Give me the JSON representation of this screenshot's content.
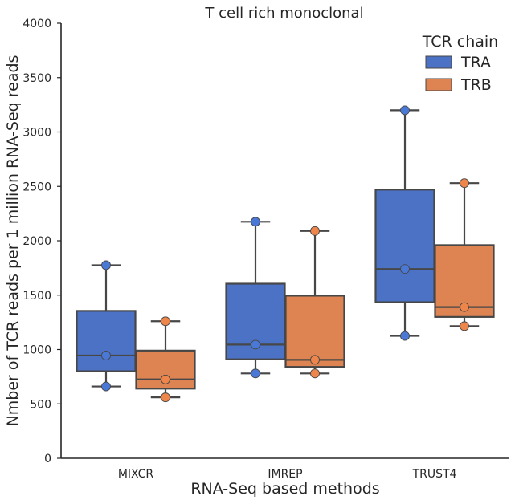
{
  "chart_data": {
    "type": "box",
    "title": "T cell rich monoclonal",
    "xlabel": "RNA-Seq based methods",
    "ylabel": "Nmber of TCR reads per 1 million RNA-Seq reads",
    "categories": [
      "MIXCR",
      "IMREP",
      "TRUST4"
    ],
    "ylim": [
      0,
      4000
    ],
    "yticks": [
      0,
      500,
      1000,
      1500,
      2000,
      2500,
      3000,
      3500,
      4000
    ],
    "legend": {
      "title": "TCR chain",
      "position": "top-right",
      "entries": [
        "TRA",
        "TRB"
      ]
    },
    "grid": false,
    "colors": {
      "TRA": "#4c72c6",
      "TRB": "#dd8452",
      "TRA_point": "#4a78d6",
      "TRB_point": "#ee854a",
      "line": "#474747"
    },
    "series": [
      {
        "name": "TRA",
        "boxes": [
          {
            "category": "MIXCR",
            "whisker_low": 660,
            "q1": 800,
            "median": 945,
            "q3": 1355,
            "whisker_high": 1775
          },
          {
            "category": "IMREP",
            "whisker_low": 780,
            "q1": 910,
            "median": 1045,
            "q3": 1605,
            "whisker_high": 2175
          },
          {
            "category": "TRUST4",
            "whisker_low": 1125,
            "q1": 1435,
            "median": 1740,
            "q3": 2470,
            "whisker_high": 3200
          }
        ],
        "points": [
          {
            "category": "MIXCR",
            "values": [
              1775,
              945,
              660
            ]
          },
          {
            "category": "IMREP",
            "values": [
              2175,
              1045,
              780
            ]
          },
          {
            "category": "TRUST4",
            "values": [
              3200,
              1740,
              1125
            ]
          }
        ]
      },
      {
        "name": "TRB",
        "boxes": [
          {
            "category": "MIXCR",
            "whisker_low": 560,
            "q1": 640,
            "median": 725,
            "q3": 990,
            "whisker_high": 1260
          },
          {
            "category": "IMREP",
            "whisker_low": 780,
            "q1": 840,
            "median": 905,
            "q3": 1495,
            "whisker_high": 2090
          },
          {
            "category": "TRUST4",
            "whisker_low": 1215,
            "q1": 1300,
            "median": 1390,
            "q3": 1960,
            "whisker_high": 2530
          }
        ],
        "points": [
          {
            "category": "MIXCR",
            "values": [
              1260,
              725,
              560
            ]
          },
          {
            "category": "IMREP",
            "values": [
              2090,
              905,
              780
            ]
          },
          {
            "category": "TRUST4",
            "values": [
              2530,
              1390,
              1215
            ]
          }
        ]
      }
    ]
  }
}
